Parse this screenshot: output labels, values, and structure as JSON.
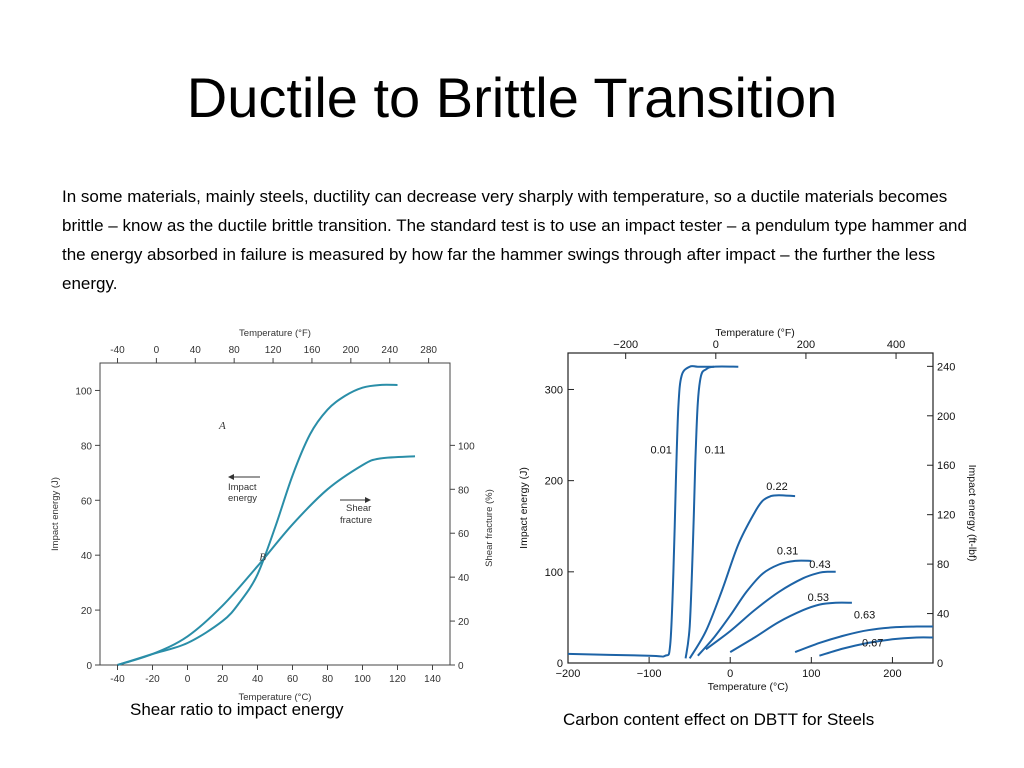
{
  "slide": {
    "title": "Ductile to Brittle Transition",
    "body": "In some materials, mainly steels, ductility can decrease very sharply with temperature, so a ductile materials becomes brittle – know as the ductile brittle transition. The standard test is to use an impact tester – a pendulum type hammer and the energy absorbed in failure is measured by how far the hammer swings through after impact – the further the less energy.",
    "caption_left": "Shear ratio to impact energy",
    "caption_right": "Carbon content effect on DBTT for Steels"
  },
  "colors": {
    "curve_left": "#2a8ea8",
    "curve_right": "#1d63a6",
    "frame": "#444444"
  },
  "chart_data": [
    {
      "type": "line",
      "title": "",
      "xlabel": "Temperature (°C)",
      "x2label": "Temperature (°F)",
      "ylabel": "Impact energy (J)",
      "y2label": "Shear fracture (%)",
      "xlim": [
        -50,
        150
      ],
      "ylim": [
        0,
        110
      ],
      "y2lim": [
        0,
        137.5
      ],
      "xticks": [
        -40,
        -20,
        0,
        20,
        40,
        60,
        80,
        100,
        120,
        140
      ],
      "x2ticks": [
        -40,
        0,
        40,
        80,
        120,
        160,
        200,
        240,
        280
      ],
      "yticks": [
        0,
        20,
        40,
        60,
        80,
        100
      ],
      "y2ticks": [
        0,
        20,
        40,
        60,
        80,
        100
      ],
      "grid": false,
      "annotations": {
        "impact_energy": [
          "Impact",
          "energy"
        ],
        "shear_fracture": [
          "Shear",
          "fracture"
        ]
      },
      "series": [
        {
          "name": "A",
          "axis": "left",
          "x": [
            -40,
            -20,
            0,
            20,
            30,
            40,
            50,
            60,
            70,
            80,
            90,
            100,
            110,
            120
          ],
          "y": [
            0,
            4,
            8,
            16,
            23,
            33,
            50,
            69,
            84,
            93,
            98,
            101,
            102,
            102
          ]
        },
        {
          "name": "B",
          "axis": "right",
          "x": [
            -40,
            -20,
            0,
            20,
            40,
            60,
            80,
            100,
            110,
            130
          ],
          "y": [
            0,
            5,
            13,
            27,
            45,
            64,
            80,
            91,
            94,
            95
          ]
        }
      ]
    },
    {
      "type": "line",
      "title": "",
      "xlabel": "Temperature (°C)",
      "x2label": "Temperature (°F)",
      "ylabel": "Impact energy (J)",
      "y2label": "Impact energy (ft-lbf)",
      "xlim": [
        -200,
        250
      ],
      "ylim": [
        0,
        340
      ],
      "y2lim": [
        0,
        250.8
      ],
      "xticks": [
        -200,
        -100,
        0,
        100,
        200
      ],
      "x2ticks": [
        -200,
        0,
        200,
        400
      ],
      "yticks": [
        0,
        100,
        200,
        300
      ],
      "y2ticks": [
        0,
        40,
        80,
        120,
        160,
        200,
        240
      ],
      "grid": false,
      "series": [
        {
          "name": "0.01",
          "x": [
            -200,
            -100,
            -80,
            -74,
            -70,
            -67,
            -64,
            -60,
            -50,
            -40,
            -20
          ],
          "y": [
            10,
            8,
            8,
            20,
            100,
            200,
            280,
            315,
            325,
            325,
            325
          ]
        },
        {
          "name": "0.11",
          "x": [
            -55,
            -50,
            -46,
            -43,
            -40,
            -36,
            -30,
            -20,
            10
          ],
          "y": [
            5,
            40,
            130,
            220,
            285,
            315,
            322,
            325,
            325
          ]
        },
        {
          "name": "0.22",
          "x": [
            -50,
            -30,
            -10,
            10,
            30,
            40,
            50,
            60,
            80
          ],
          "y": [
            5,
            35,
            80,
            130,
            165,
            178,
            183,
            184,
            183
          ]
        },
        {
          "name": "0.31",
          "x": [
            -40,
            -20,
            0,
            20,
            40,
            60,
            80,
            100
          ],
          "y": [
            8,
            28,
            52,
            78,
            98,
            108,
            112,
            112
          ]
        },
        {
          "name": "0.43",
          "x": [
            -30,
            0,
            30,
            60,
            90,
            110,
            120,
            130
          ],
          "y": [
            15,
            35,
            58,
            78,
            93,
            99,
            100,
            100
          ]
        },
        {
          "name": "0.53",
          "x": [
            0,
            30,
            60,
            90,
            110,
            130,
            150
          ],
          "y": [
            12,
            28,
            45,
            58,
            64,
            66,
            66
          ]
        },
        {
          "name": "0.63",
          "x": [
            80,
            110,
            140,
            170,
            200,
            230,
            250
          ],
          "y": [
            12,
            22,
            30,
            36,
            39,
            40,
            40
          ]
        },
        {
          "name": "0.67",
          "x": [
            110,
            140,
            170,
            200,
            230,
            250
          ],
          "y": [
            8,
            16,
            22,
            26,
            28,
            28
          ]
        }
      ]
    }
  ]
}
